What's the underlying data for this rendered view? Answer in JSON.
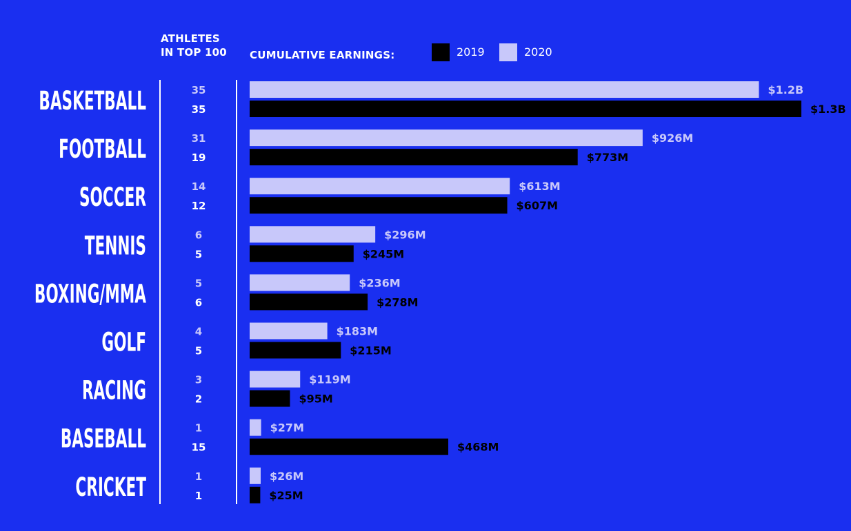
{
  "header": {
    "athletes_line1": "ATHLETES",
    "athletes_line2": "IN TOP 100",
    "earnings_label": "CUMULATIVE EARNINGS:",
    "legend_2019": "2019",
    "legend_2020": "2020"
  },
  "colors": {
    "background": "#1a2ff0",
    "bar_2019": "#000000",
    "bar_2020": "#c8c8fa",
    "label_2020": "#c8c8fa",
    "label_2019": "#000000",
    "white": "#ffffff"
  },
  "chart_data": {
    "type": "bar",
    "orientation": "horizontal",
    "categories": [
      "BASKETBALL",
      "FOOTBALL",
      "SOCCER",
      "TENNIS",
      "BOXING/MMA",
      "GOLF",
      "RACING",
      "BASEBALL",
      "CRICKET"
    ],
    "series": [
      {
        "name": "2020",
        "values": [
          1200,
          926,
          613,
          296,
          236,
          183,
          119,
          27,
          26
        ],
        "labels": [
          "$1.2B",
          "$926M",
          "$613M",
          "$296M",
          "$236M",
          "$183M",
          "$119M",
          "$27M",
          "$26M"
        ],
        "athletes": [
          "35",
          "31",
          "14",
          "6",
          "5",
          "4",
          "3",
          "1",
          "1"
        ]
      },
      {
        "name": "2019",
        "values": [
          1300,
          773,
          607,
          245,
          278,
          215,
          95,
          468,
          25
        ],
        "labels": [
          "$1.3B",
          "$773M",
          "$607M",
          "$245M",
          "$278M",
          "$215M",
          "$95M",
          "$468M",
          "$25M"
        ],
        "athletes": [
          "35",
          "19",
          "12",
          "5",
          "6",
          "5",
          "2",
          "15",
          "1"
        ]
      }
    ],
    "xlim": [
      0,
      1300
    ],
    "unit": "$M",
    "legend_position": "top"
  }
}
